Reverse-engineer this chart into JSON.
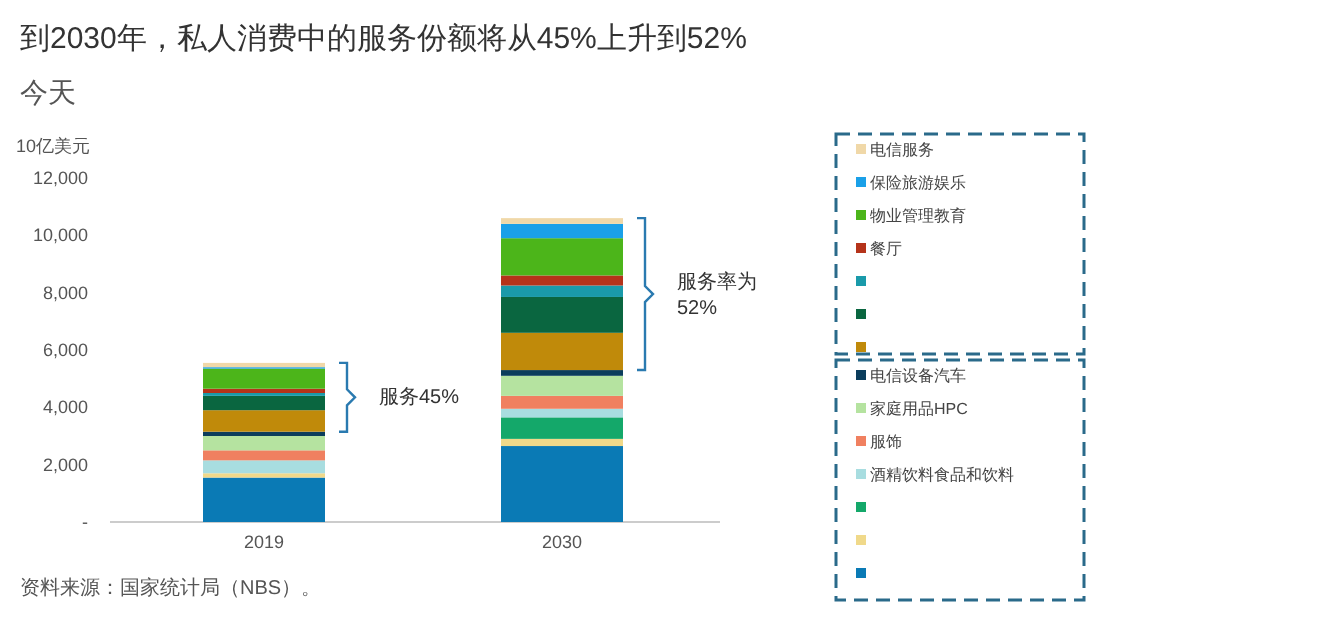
{
  "chart_data": {
    "type": "bar",
    "stacked": true,
    "title": "到2030年，私人消费中的服务份额将从45%上升到52%",
    "subtitle": "今天",
    "ylabel": "10亿美元",
    "categories": [
      "2019",
      "2030"
    ],
    "ylim": [
      0,
      12000
    ],
    "yticks": [
      {
        "value": 0,
        "label": "-"
      },
      {
        "value": 2000,
        "label": "2,000"
      },
      {
        "value": 4000,
        "label": "4,000"
      },
      {
        "value": 6000,
        "label": "6,000"
      },
      {
        "value": 8000,
        "label": "8,000"
      },
      {
        "value": 10000,
        "label": "10,000"
      },
      {
        "value": 12000,
        "label": "12,000"
      }
    ],
    "legend": "right",
    "series": [
      {
        "color": "#0a7ab5",
        "values": [
          1550,
          2650
        ]
      },
      {
        "color": "#f0d98a",
        "values": [
          150,
          250
        ]
      },
      {
        "color": "#14a86a",
        "values": [
          0,
          750
        ]
      },
      {
        "name": "酒精饮料食品和饮料",
        "color": "#a8dde0",
        "values": [
          450,
          300
        ]
      },
      {
        "name": "服饰",
        "color": "#f08060",
        "values": [
          350,
          450
        ]
      },
      {
        "name": "家庭用品HPC",
        "color": "#b5e3a0",
        "values": [
          500,
          700
        ]
      },
      {
        "name": "电信设备汽车",
        "color": "#0b3d5c",
        "values": [
          150,
          200
        ]
      },
      {
        "color": "#c08a0a",
        "values": [
          750,
          1300
        ]
      },
      {
        "color": "#0a6640",
        "values": [
          500,
          1250
        ]
      },
      {
        "color": "#1a9aaa",
        "values": [
          100,
          400
        ]
      },
      {
        "name": "餐厅",
        "color": "#b5331a",
        "values": [
          150,
          350
        ]
      },
      {
        "name": "物业管理教育",
        "color": "#4cb51a",
        "values": [
          700,
          1300
        ]
      },
      {
        "name": "保险旅游娱乐",
        "color": "#1aa0e8",
        "values": [
          50,
          500
        ]
      },
      {
        "name": "电信服务",
        "color": "#f0d8a8",
        "values": [
          150,
          200
        ]
      }
    ],
    "annotations": [
      "服务45%",
      "服务率为\n52%",
      "资料来源：国家统计局（NBS）。"
    ]
  }
}
